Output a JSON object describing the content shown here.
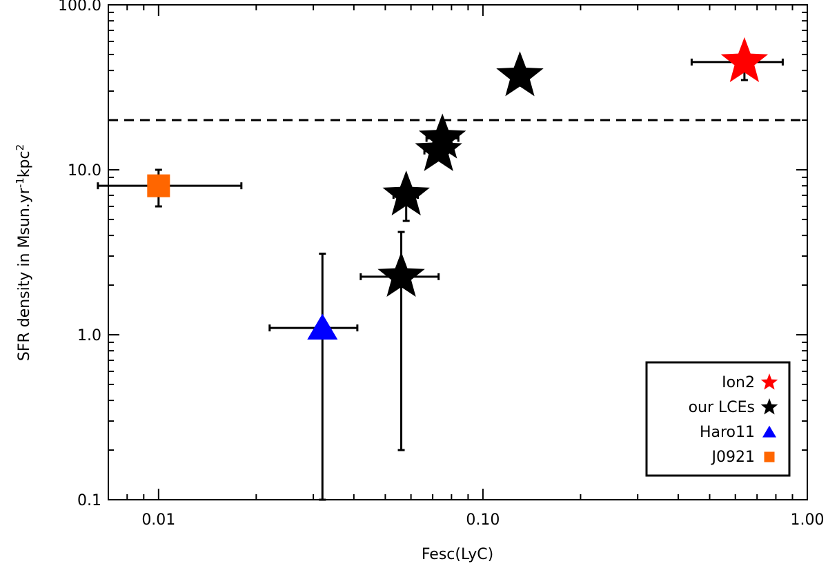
{
  "chart_data": {
    "type": "scatter",
    "xscale": "log",
    "yscale": "log",
    "xlim": [
      0.007,
      1.0
    ],
    "ylim": [
      0.1,
      100.0
    ],
    "xlabel": "Fesc(LyC)",
    "ylabel_main": "SFR density in Msun.yr",
    "ylabel_sup1": "-1",
    "ylabel_mid": "kpc",
    "ylabel_sup2": "2",
    "x_tick_labels": [
      "0.01",
      "0.10",
      "1.00"
    ],
    "x_tick_values": [
      0.01,
      0.1,
      1.0
    ],
    "y_tick_labels": [
      "0.1",
      "1.0",
      "10.0",
      "100.0"
    ],
    "y_tick_values": [
      0.1,
      1.0,
      10.0,
      100.0
    ],
    "threshold_line": {
      "y": 20,
      "style": "dashed"
    },
    "series": [
      {
        "name": "Ion2",
        "marker": "star",
        "color": "#ff0000",
        "points": [
          {
            "x": 0.64,
            "y": 45,
            "xerr": [
              0.44,
              0.84
            ],
            "yerr": [
              35,
              55
            ]
          }
        ]
      },
      {
        "name": "our LCEs",
        "marker": "star",
        "color": "#000000",
        "points": [
          {
            "x": 0.13,
            "y": 37,
            "xerr": [
              0.128,
              0.138
            ],
            "yerr": [
              36,
              38
            ]
          },
          {
            "x": 0.075,
            "y": 15.5,
            "xerr": [
              0.067,
              0.084
            ],
            "yerr": [
              15,
              16
            ]
          },
          {
            "x": 0.073,
            "y": 13,
            "xerr": [
              0.066,
              0.08
            ],
            "yerr": [
              12.5,
              13.5
            ]
          },
          {
            "x": 0.058,
            "y": 7,
            "xerr": [
              0.053,
              0.063
            ],
            "yerr": [
              4.9,
              7.5
            ]
          },
          {
            "x": 0.056,
            "y": 2.25,
            "xerr": [
              0.042,
              0.073
            ],
            "yerr": [
              0.2,
              4.2
            ]
          }
        ]
      },
      {
        "name": "Haro11",
        "marker": "triangle",
        "color": "#0000ff",
        "points": [
          {
            "x": 0.032,
            "y": 1.1,
            "xerr": [
              0.022,
              0.041
            ],
            "yerr": [
              0.1,
              3.1
            ]
          }
        ]
      },
      {
        "name": "J0921",
        "marker": "square",
        "color": "#ff6600",
        "points": [
          {
            "x": 0.01,
            "y": 8,
            "xerr": [
              0.0065,
              0.018
            ],
            "yerr": [
              6,
              10
            ]
          }
        ]
      }
    ],
    "legend": {
      "position": "bottom-right",
      "entries": [
        {
          "label": "Ion2",
          "marker": "star",
          "color": "#ff0000"
        },
        {
          "label": "our LCEs",
          "marker": "star",
          "color": "#000000"
        },
        {
          "label": "Haro11",
          "marker": "triangle",
          "color": "#0000ff"
        },
        {
          "label": "J0921",
          "marker": "square",
          "color": "#ff6600"
        }
      ]
    }
  }
}
